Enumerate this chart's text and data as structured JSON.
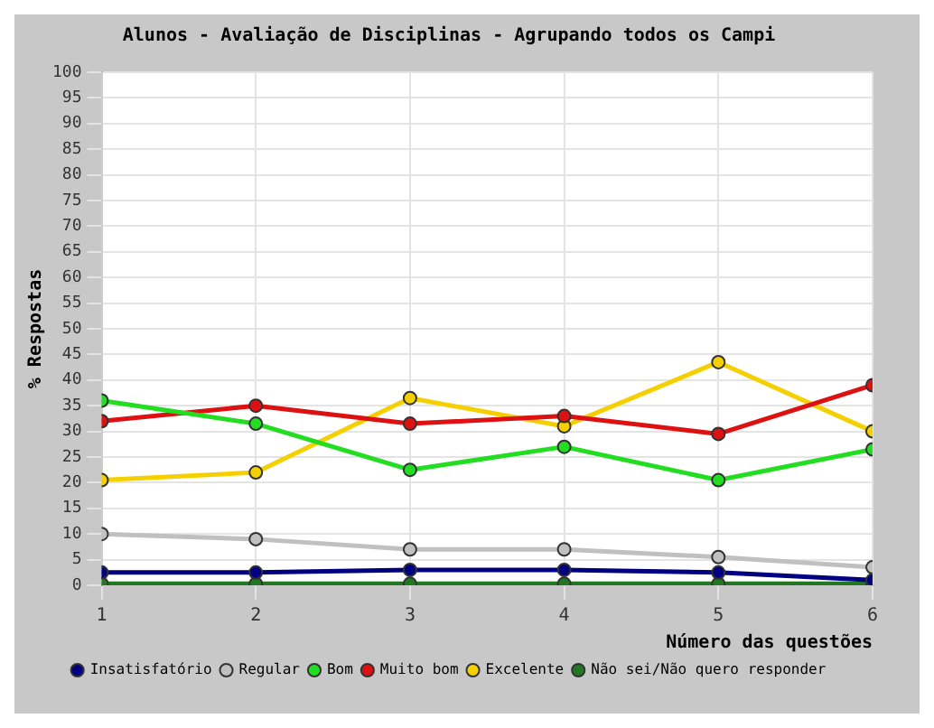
{
  "chart_data": {
    "type": "line",
    "title": "Alunos - Avaliação de Disciplinas - Agrupando todos os Campi",
    "xlabel": "Número das questões",
    "ylabel": "% Respostas",
    "x": [
      1,
      2,
      3,
      4,
      5,
      6
    ],
    "xlim": [
      1,
      6
    ],
    "xticks": [
      1,
      2,
      3,
      4,
      5,
      6
    ],
    "ylim": [
      0,
      100
    ],
    "yticks": [
      0,
      5,
      10,
      15,
      20,
      25,
      30,
      35,
      40,
      45,
      50,
      55,
      60,
      65,
      70,
      75,
      80,
      85,
      90,
      95,
      100
    ],
    "grid": true,
    "legend": "bottom",
    "marker": "circle",
    "line_style": "solid",
    "series": [
      {
        "name": "Insatisfatório",
        "color": "#000080",
        "values": [
          2.5,
          2.5,
          3,
          3,
          2.5,
          1
        ]
      },
      {
        "name": "Regular",
        "color": "#c0c0c0",
        "values": [
          10,
          9,
          7,
          7,
          5.5,
          3.5
        ]
      },
      {
        "name": "Bom",
        "color": "#22dd22",
        "values": [
          36,
          31.5,
          22.5,
          27,
          20.5,
          26.5
        ]
      },
      {
        "name": "Muito bom",
        "color": "#dd1111",
        "values": [
          32,
          35,
          31.5,
          33,
          29.5,
          39
        ]
      },
      {
        "name": "Excelente",
        "color": "#f5d000",
        "values": [
          20.5,
          22,
          36.5,
          31,
          43.5,
          30
        ]
      },
      {
        "name": "Não sei/Não quero responder",
        "color": "#227722",
        "values": [
          0.3,
          0.3,
          0.3,
          0.3,
          0.3,
          0.3
        ]
      }
    ]
  }
}
